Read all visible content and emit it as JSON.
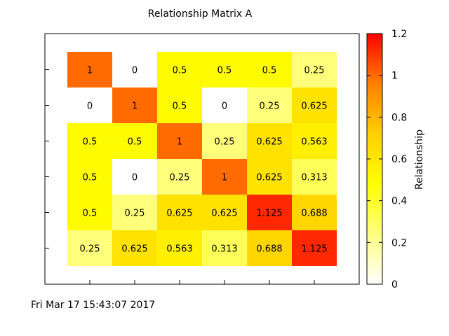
{
  "chart_data": {
    "type": "heatmap",
    "title": "Relationship Matrix A",
    "xlabel": "",
    "ylabel": "",
    "rows": 6,
    "cols": 6,
    "matrix": [
      [
        1,
        0,
        0.5,
        0.5,
        0.5,
        0.25
      ],
      [
        0,
        1,
        0.5,
        0,
        0.25,
        0.625
      ],
      [
        0.5,
        0.5,
        1,
        0.25,
        0.625,
        0.563
      ],
      [
        0.5,
        0,
        0.25,
        1,
        0.625,
        0.313
      ],
      [
        0.5,
        0.25,
        0.625,
        0.625,
        1.125,
        0.688
      ],
      [
        0.25,
        0.625,
        0.563,
        0.313,
        0.688,
        1.125
      ]
    ],
    "cell_labels": [
      [
        "1",
        "0",
        "0.5",
        "0.5",
        "0.5",
        "0.25"
      ],
      [
        "0",
        "1",
        "0.5",
        "0",
        "0.25",
        "0.625"
      ],
      [
        "0.5",
        "0.5",
        "1",
        "0.25",
        "0.625",
        "0.563"
      ],
      [
        "0.5",
        "0",
        "0.25",
        "1",
        "0.625",
        "0.313"
      ],
      [
        "0.5",
        "0.25",
        "0.625",
        "0.625",
        "1.125",
        "0.688"
      ],
      [
        "0.25",
        "0.625",
        "0.563",
        "0.313",
        "0.688",
        "1.125"
      ]
    ],
    "colorbar": {
      "label": "Relationship",
      "range": [
        0,
        1.2
      ],
      "ticks": [
        0,
        0.2,
        0.4,
        0.6,
        0.8,
        1,
        1.2
      ],
      "tick_labels": [
        "0",
        "0.2",
        "0.4",
        "0.6",
        "0.8",
        "1",
        "1.2"
      ],
      "colors": [
        "#ffffff",
        "#ffff80",
        "#ffff00",
        "#ffd000",
        "#ff8000",
        "#ff0000"
      ]
    },
    "grid": false,
    "legend": "colorbar-right"
  },
  "timestamp": "Fri Mar 17 15:43:07 2017"
}
